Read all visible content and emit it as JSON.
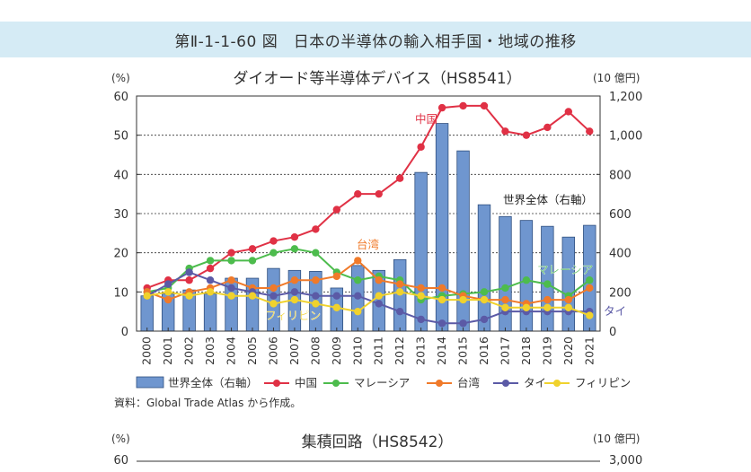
{
  "figure": {
    "title": "第Ⅱ-1-1-60 図　日本の半導体の輸入相手国・地域の推移",
    "source": "資料：Global Trade Atlas から作成。"
  },
  "chart_data": [
    {
      "type": "bar+line",
      "title": "ダイオード等半導体デバイス（HS8541）",
      "left_unit": "(%)",
      "right_unit": "(10 億円)",
      "ylim_left": [
        0,
        60
      ],
      "yticks_left": [
        0,
        10,
        20,
        30,
        40,
        50,
        60
      ],
      "ylim_right": [
        0,
        1200
      ],
      "yticks_right": [
        "0",
        "200",
        "400",
        "600",
        "800",
        "1,000",
        "1,200"
      ],
      "categories": [
        "2000",
        "2001",
        "2002",
        "2003",
        "2004",
        "2005",
        "2006",
        "2007",
        "2008",
        "2009",
        "2010",
        "2011",
        "2012",
        "2013",
        "2014",
        "2015",
        "2016",
        "2017",
        "2018",
        "2019",
        "2020",
        "2021"
      ],
      "bars": {
        "name": "世界全体（右軸）",
        "color": "#6f96cf",
        "values": [
          180,
          190,
          210,
          190,
          270,
          270,
          320,
          310,
          305,
          220,
          335,
          310,
          365,
          810,
          1060,
          920,
          645,
          585,
          565,
          535,
          480,
          540
        ]
      },
      "series": [
        {
          "name": "中国",
          "color": "#e03145",
          "values": [
            11,
            13,
            13,
            16,
            20,
            21,
            23,
            24,
            26,
            31,
            35,
            35,
            39,
            47,
            57,
            57.5,
            57.5,
            51,
            50,
            52,
            56,
            51
          ]
        },
        {
          "name": "マレーシア",
          "color": "#4dbc4d",
          "values": [
            10,
            11,
            16,
            18,
            18,
            18,
            20,
            21,
            20,
            15,
            13,
            14,
            13,
            8,
            9,
            9.5,
            10,
            11,
            13,
            12,
            9,
            13
          ]
        },
        {
          "name": "台湾",
          "color": "#f07a2a",
          "values": [
            10,
            8,
            10,
            11,
            13,
            11,
            11,
            13,
            13,
            14,
            18,
            13,
            12,
            11,
            11,
            9,
            8,
            8,
            7,
            8,
            8,
            11
          ]
        },
        {
          "name": "タイ",
          "color": "#5b5aa6",
          "values": [
            9,
            12,
            15,
            13,
            11,
            10,
            9,
            10,
            9,
            9,
            9,
            7,
            5,
            3,
            2,
            2,
            3,
            5,
            5,
            5,
            5,
            5
          ]
        },
        {
          "name": "フィリピン",
          "color": "#f0d22d",
          "values": [
            9,
            10,
            9,
            10,
            9,
            9,
            7,
            8,
            7,
            6,
            5,
            9,
            10,
            9,
            8,
            8,
            8,
            6,
            6,
            6,
            6,
            4
          ]
        }
      ],
      "annotations": [
        {
          "text": "中国",
          "color": "#e03145"
        },
        {
          "text": "台湾",
          "color": "#f07a2a"
        },
        {
          "text": "世界全体（右軸）",
          "color": "#222222"
        },
        {
          "text": "マレーシア",
          "color": "#4dbc4d"
        },
        {
          "text": "フィリピン",
          "color": "#f0d22d"
        },
        {
          "text": "タイ",
          "color": "#5b5aa6"
        }
      ],
      "legend_position": "bottom"
    },
    {
      "type": "bar+line",
      "title": "集積回路（HS8542）",
      "left_unit": "(%)",
      "right_unit": "(10 億円)",
      "visible_left_tick": "60",
      "visible_right_tick": "3,000"
    }
  ]
}
